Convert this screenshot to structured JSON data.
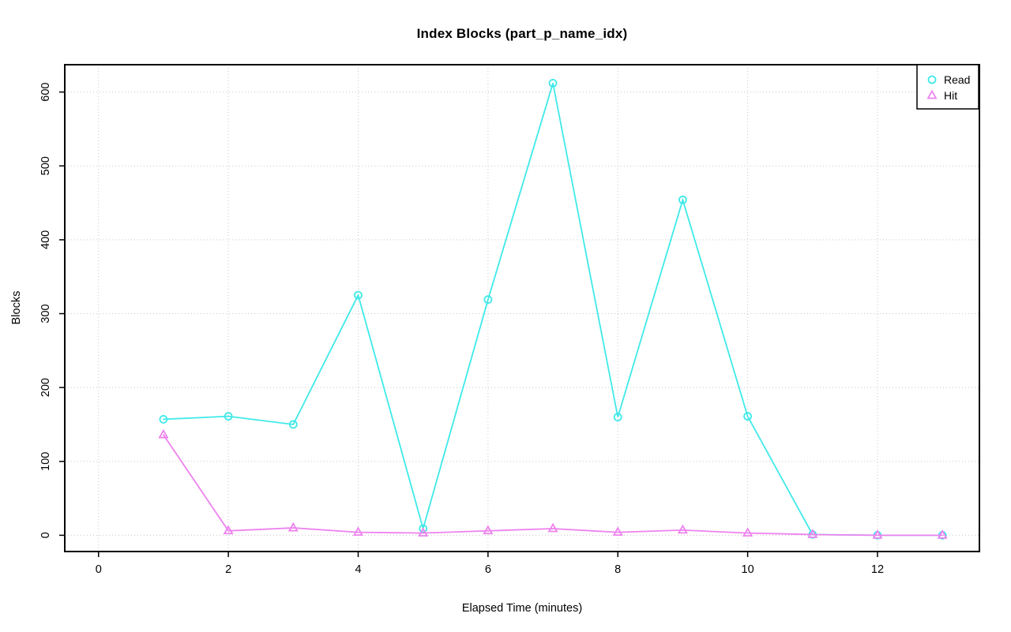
{
  "page": {
    "background": "#ffffff"
  },
  "chart_data": {
    "type": "line",
    "title": "Index Blocks (part_p_name_idx)",
    "xlabel": "Elapsed Time (minutes)",
    "ylabel": "Blocks",
    "x_ticks": [
      0,
      2,
      4,
      6,
      8,
      10,
      12
    ],
    "y_ticks": [
      0,
      100,
      200,
      300,
      400,
      500,
      600
    ],
    "xlim": [
      -0.52,
      13.57
    ],
    "ylim": [
      -22,
      637
    ],
    "grid": true,
    "grid_style": "dotted",
    "grid_color": "#c8c8c8",
    "axis_color": "#000000",
    "legend": {
      "position": "top-right",
      "entries": [
        "Read",
        "Hit"
      ]
    },
    "series": [
      {
        "name": "Read",
        "marker": "circle",
        "color": "#3fe9e9",
        "x": [
          1,
          2,
          3,
          4,
          5,
          6,
          7,
          8,
          9,
          10,
          11,
          12,
          13
        ],
        "values": [
          157,
          161,
          150,
          325,
          9,
          319,
          612,
          160,
          454,
          161,
          1,
          0,
          0
        ]
      },
      {
        "name": "Hit",
        "marker": "triangle",
        "color": "#ee82ee",
        "x": [
          1,
          2,
          3,
          4,
          5,
          6,
          7,
          8,
          9,
          10,
          11,
          12,
          13
        ],
        "values": [
          136,
          6,
          10,
          4,
          3,
          6,
          9,
          4,
          7,
          3,
          1,
          0,
          0
        ]
      }
    ]
  }
}
